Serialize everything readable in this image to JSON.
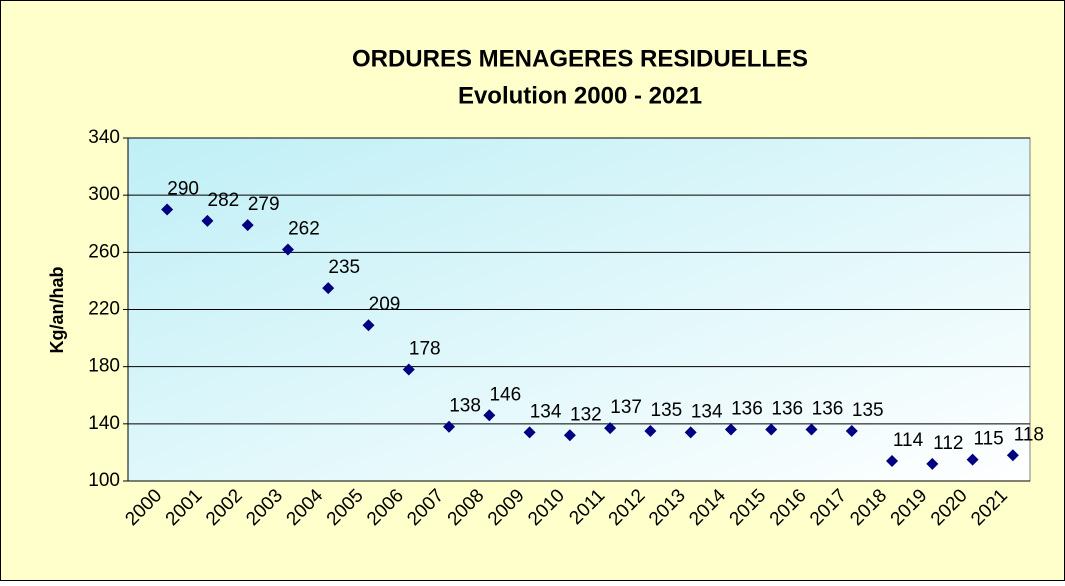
{
  "chart_data": {
    "type": "line",
    "title": "ORDURES MENAGERES RESIDUELLES",
    "subtitle": "Evolution 2000 - 2021",
    "y_label": "Kg/an/hab",
    "categories": [
      "2000",
      "2001",
      "2002",
      "2003",
      "2004",
      "2005",
      "2006",
      "2007",
      "2008",
      "2009",
      "2010",
      "2011",
      "2012",
      "2013",
      "2014",
      "2015",
      "2016",
      "2017",
      "2018",
      "2019",
      "2020",
      "2021"
    ],
    "series": [
      {
        "name": "Kg/an/hab",
        "color": "#000080",
        "values": [
          290,
          282,
          279,
          262,
          235,
          209,
          178,
          138,
          146,
          134,
          132,
          137,
          135,
          134,
          136,
          136,
          136,
          135,
          114,
          112,
          115,
          118
        ]
      }
    ],
    "ylim": [
      100,
      340
    ],
    "yticks": [
      100,
      140,
      180,
      220,
      260,
      300,
      340
    ],
    "grid": true
  }
}
